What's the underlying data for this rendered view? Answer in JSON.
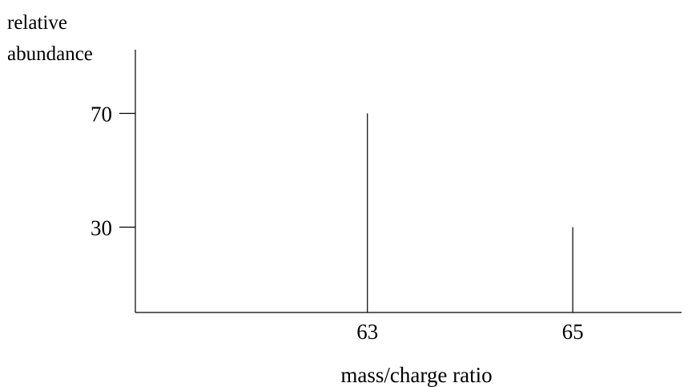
{
  "chart_data": {
    "type": "bar",
    "xlabel": "mass/charge ratio",
    "ylabel": [
      "relative",
      "abundance"
    ],
    "x": [
      63,
      65
    ],
    "values": [
      70,
      30
    ],
    "x_tick_labels": [
      "63",
      "65"
    ],
    "y_ticks": [
      70,
      30
    ],
    "y_tick_labels": [
      "70",
      "30"
    ],
    "xlim": [
      60.74,
      66.06
    ],
    "ylim": [
      0,
      92.4
    ],
    "grid": false,
    "colors": {
      "line": "#000000",
      "background": "#ffffff"
    }
  }
}
